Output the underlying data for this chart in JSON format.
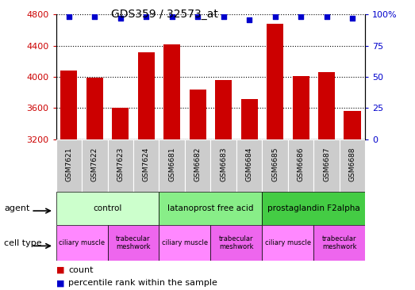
{
  "title": "GDS359 / 32573_at",
  "samples": [
    "GSM7621",
    "GSM7622",
    "GSM7623",
    "GSM7624",
    "GSM6681",
    "GSM6682",
    "GSM6683",
    "GSM6684",
    "GSM6685",
    "GSM6686",
    "GSM6687",
    "GSM6688"
  ],
  "counts": [
    4080,
    3990,
    3600,
    4320,
    4420,
    3840,
    3960,
    3720,
    4680,
    4010,
    4060,
    3560
  ],
  "percentiles": [
    98,
    98,
    97,
    98,
    98,
    98,
    98,
    96,
    98,
    98,
    98,
    97
  ],
  "ylim_left": [
    3200,
    4800
  ],
  "ylim_right": [
    0,
    100
  ],
  "yticks_left": [
    3200,
    3600,
    4000,
    4400,
    4800
  ],
  "yticks_right": [
    0,
    25,
    50,
    75,
    100
  ],
  "bar_color": "#cc0000",
  "dot_color": "#0000cc",
  "grid_color": "#000000",
  "sample_box_color": "#cccccc",
  "agents": [
    {
      "label": "control",
      "start": 0,
      "end": 4,
      "color": "#ccffcc"
    },
    {
      "label": "latanoprost free acid",
      "start": 4,
      "end": 8,
      "color": "#88ee88"
    },
    {
      "label": "prostaglandin F2alpha",
      "start": 8,
      "end": 12,
      "color": "#44cc44"
    }
  ],
  "cell_types": [
    {
      "label": "ciliary muscle",
      "start": 0,
      "end": 2,
      "color": "#ff88ff"
    },
    {
      "label": "trabecular\nmeshwork",
      "start": 2,
      "end": 4,
      "color": "#ee66ee"
    },
    {
      "label": "ciliary muscle",
      "start": 4,
      "end": 6,
      "color": "#ff88ff"
    },
    {
      "label": "trabecular\nmeshwork",
      "start": 6,
      "end": 8,
      "color": "#ee66ee"
    },
    {
      "label": "ciliary muscle",
      "start": 8,
      "end": 10,
      "color": "#ff88ff"
    },
    {
      "label": "trabecular\nmeshwork",
      "start": 10,
      "end": 12,
      "color": "#ee66ee"
    }
  ],
  "legend_count_label": "count",
  "legend_pct_label": "percentile rank within the sample",
  "agent_label": "agent",
  "celltype_label": "cell type",
  "fig_width": 5.23,
  "fig_height": 3.66,
  "dpi": 100
}
